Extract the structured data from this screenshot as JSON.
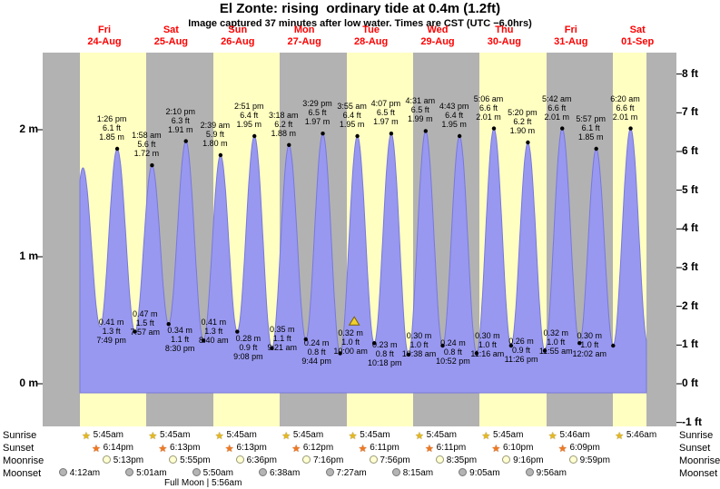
{
  "title": "El Zonte: rising  ordinary tide at 0.4m (1.2ft)",
  "subtitle": "Image captured 37 minutes after low water. Times are CST (UTC −6.0hrs)",
  "colors": {
    "day_yellow": "#ffffc2",
    "day_gray": "#b2b2b2",
    "tide_fill": "#9898f0",
    "tide_edge": "#7878dc",
    "day_label_red": "#ff0000",
    "marker_yellow": "#f2d02e",
    "marker_edge": "#7a6000"
  },
  "chart_data": {
    "type": "area",
    "x_axis_days": [
      {
        "dow": "Fri",
        "date": "24-Aug"
      },
      {
        "dow": "Sat",
        "date": "25-Aug"
      },
      {
        "dow": "Sun",
        "date": "26-Aug"
      },
      {
        "dow": "Mon",
        "date": "27-Aug"
      },
      {
        "dow": "Tue",
        "date": "28-Aug"
      },
      {
        "dow": "Wed",
        "date": "29-Aug"
      },
      {
        "dow": "Thu",
        "date": "30-Aug"
      },
      {
        "dow": "Fri",
        "date": "31-Aug"
      },
      {
        "dow": "Sat",
        "date": "01-Sep"
      }
    ],
    "y_axis_left": {
      "labels": [
        "2 m",
        "1 m",
        "0 m"
      ],
      "values_m": [
        2,
        1,
        0
      ]
    },
    "y_axis_right": {
      "labels": [
        "8 ft",
        "7 ft",
        "6 ft",
        "5 ft",
        "4 ft",
        "3 ft",
        "2 ft",
        "1 ft",
        "0 ft",
        "-1 ft"
      ],
      "values_ft": [
        8,
        7,
        6,
        5,
        4,
        3,
        2,
        1,
        0,
        -1
      ]
    },
    "events": [
      {
        "day": -1,
        "hours": 19.0,
        "m": "0.40",
        "type": "low",
        "annotate": false
      },
      {
        "day": 0,
        "hours": 1.1,
        "m": "1.70",
        "type": "high",
        "annotate": false
      },
      {
        "day": 0,
        "hours": 7.3,
        "m": "0.45",
        "type": "low",
        "annotate": false
      },
      {
        "day": 0,
        "hours": 13.43,
        "time": "1:26 pm",
        "ft": "6.1",
        "m": "1.85",
        "type": "high"
      },
      {
        "day": 0,
        "hours": 19.82,
        "time": "7:49 pm",
        "ft": "1.3",
        "m": "0.41",
        "type": "low"
      },
      {
        "day": 1,
        "hours": 1.97,
        "time": "1:58 am",
        "ft": "5.6",
        "m": "1.72",
        "type": "high"
      },
      {
        "day": 1,
        "hours": 7.95,
        "time": "7:57 am",
        "ft": "1.5",
        "m": "0.47",
        "type": "low"
      },
      {
        "day": 1,
        "hours": 14.17,
        "time": "2:10 pm",
        "ft": "6.3",
        "m": "1.91",
        "type": "high"
      },
      {
        "day": 1,
        "hours": 20.5,
        "time": "8:30 pm",
        "ft": "1.1",
        "m": "0.34",
        "type": "low"
      },
      {
        "day": 2,
        "hours": 2.65,
        "time": "2:39 am",
        "ft": "5.9",
        "m": "1.80",
        "type": "high"
      },
      {
        "day": 2,
        "hours": 8.67,
        "time": "8:40 am",
        "ft": "1.3",
        "m": "0.41",
        "type": "low"
      },
      {
        "day": 2,
        "hours": 14.85,
        "time": "2:51 pm",
        "ft": "6.4",
        "m": "1.95",
        "type": "high"
      },
      {
        "day": 2,
        "hours": 21.13,
        "time": "9:08 pm",
        "ft": "0.9",
        "m": "0.28",
        "type": "low"
      },
      {
        "day": 3,
        "hours": 3.3,
        "time": "3:18 am",
        "ft": "6.2",
        "m": "1.88",
        "type": "high"
      },
      {
        "day": 3,
        "hours": 9.35,
        "time": "9:21 am",
        "ft": "1.1",
        "m": "0.35",
        "type": "low"
      },
      {
        "day": 3,
        "hours": 15.48,
        "time": "3:29 pm",
        "ft": "6.5",
        "m": "1.97",
        "type": "high"
      },
      {
        "day": 3,
        "hours": 21.73,
        "time": "9:44 pm",
        "ft": "0.8",
        "m": "0.24",
        "type": "low"
      },
      {
        "day": 4,
        "hours": 3.92,
        "time": "3:55 am",
        "ft": "6.4",
        "m": "1.95",
        "type": "high"
      },
      {
        "day": 4,
        "hours": 10.0,
        "time": "10:00 am",
        "ft": "1.0",
        "m": "0.32",
        "type": "low",
        "current": true
      },
      {
        "day": 4,
        "hours": 16.12,
        "time": "4:07 pm",
        "ft": "6.5",
        "m": "1.97",
        "type": "high"
      },
      {
        "day": 4,
        "hours": 22.3,
        "time": "10:18 pm",
        "ft": "0.8",
        "m": "0.23",
        "type": "low"
      },
      {
        "day": 5,
        "hours": 4.52,
        "time": "4:31 am",
        "ft": "6.5",
        "m": "1.99",
        "type": "high"
      },
      {
        "day": 5,
        "hours": 10.63,
        "time": "10:38 am",
        "ft": "1.0",
        "m": "0.30",
        "type": "low"
      },
      {
        "day": 5,
        "hours": 16.72,
        "time": "4:43 pm",
        "ft": "6.4",
        "m": "1.95",
        "type": "high"
      },
      {
        "day": 5,
        "hours": 22.87,
        "time": "10:52 pm",
        "ft": "0.8",
        "m": "0.24",
        "type": "low"
      },
      {
        "day": 6,
        "hours": 5.1,
        "time": "5:06 am",
        "ft": "6.6",
        "m": "2.01",
        "type": "high"
      },
      {
        "day": 6,
        "hours": 11.27,
        "time": "11:16 am",
        "ft": "1.0",
        "m": "0.30",
        "type": "low"
      },
      {
        "day": 6,
        "hours": 17.33,
        "time": "5:20 pm",
        "ft": "6.2",
        "m": "1.90",
        "type": "high"
      },
      {
        "day": 6,
        "hours": 23.43,
        "time": "11:26 pm",
        "ft": "0.9",
        "m": "0.26",
        "type": "low"
      },
      {
        "day": 7,
        "hours": 5.7,
        "time": "5:42 am",
        "ft": "6.6",
        "m": "2.01",
        "type": "high"
      },
      {
        "day": 7,
        "hours": 11.92,
        "time": "11:55 am",
        "ft": "1.0",
        "m": "0.32",
        "type": "low"
      },
      {
        "day": 7,
        "hours": 17.95,
        "time": "5:57 pm",
        "ft": "6.1",
        "m": "1.85",
        "type": "high"
      },
      {
        "day": 8,
        "hours": 0.03,
        "time": "12:02 am",
        "ft": "1.0",
        "m": "0.30",
        "type": "low"
      },
      {
        "day": 8,
        "hours": 6.33,
        "time": "6:20 am",
        "ft": "6.6",
        "m": "2.01",
        "type": "high"
      },
      {
        "day": 8,
        "hours": 12.42,
        "m": "0.32",
        "type": "low",
        "annotate": false
      }
    ]
  },
  "astro": {
    "rows": [
      {
        "name": "sunrise",
        "label": "Sunrise",
        "icon": "star",
        "icon_color": "#e6b81e",
        "icon_border": "#6b5a10",
        "times": [
          "5:45am",
          "5:45am",
          "5:45am",
          "5:45am",
          "5:45am",
          "5:45am",
          "5:45am",
          "5:46am",
          "5:46am"
        ]
      },
      {
        "name": "sunset",
        "label": "Sunset",
        "icon": "star",
        "icon_color": "#f07820",
        "icon_border": "#8a3a00",
        "times": [
          "6:14pm",
          "6:13pm",
          "6:13pm",
          "6:12pm",
          "6:11pm",
          "6:11pm",
          "6:10pm",
          "6:09pm"
        ]
      },
      {
        "name": "moonrise",
        "label": "Moonrise",
        "icon": "moon",
        "icon_color": "#ffffd2",
        "icon_border": "#9a9a7a",
        "times": [
          "5:13pm",
          "5:55pm",
          "6:36pm",
          "7:16pm",
          "7:56pm",
          "8:35pm",
          "9:16pm",
          "9:59pm"
        ]
      },
      {
        "name": "moonset",
        "label": "Moonset",
        "icon": "moon",
        "icon_color": "#b4b4b4",
        "icon_border": "#787878",
        "times": [
          "4:12am",
          "5:01am",
          "5:50am",
          "6:38am",
          "7:27am",
          "8:15am",
          "9:05am",
          "9:56am"
        ]
      }
    ],
    "full_moon_note": "Full Moon | 5:56am"
  }
}
